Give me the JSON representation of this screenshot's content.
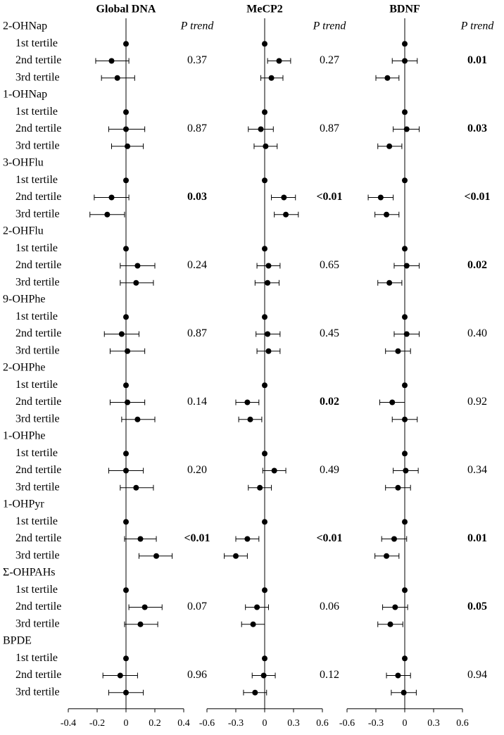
{
  "chart_data": {
    "type": "forest",
    "groups": [
      "2-OHNap",
      "1-OHNap",
      "3-OHFlu",
      "2-OHFlu",
      "9-OHPhe",
      "2-OHPhe",
      "1-OHPhe",
      "1-OHPyr",
      "Σ-OHPAHs",
      "BPDE"
    ],
    "tertiles": [
      "1st tertile",
      "2nd tertile",
      "3rd tertile"
    ],
    "p_trend_label": "P trend",
    "color": "#000000",
    "panels": [
      {
        "title": "Global DNA",
        "xlim": [
          -0.4,
          0.4
        ],
        "xticks": [
          -0.4,
          -0.2,
          0,
          0.2,
          0.4
        ],
        "estimates": [
          [
            0,
            -0.1,
            -0.06
          ],
          [
            0,
            0.0,
            0.01
          ],
          [
            0,
            -0.1,
            -0.13
          ],
          [
            0,
            0.08,
            0.07
          ],
          [
            0,
            -0.03,
            0.01
          ],
          [
            0,
            0.01,
            0.08
          ],
          [
            0,
            0.0,
            0.07
          ],
          [
            0,
            0.1,
            0.21
          ],
          [
            0,
            0.13,
            0.1
          ],
          [
            0,
            -0.04,
            0.0
          ]
        ],
        "lower": [
          [
            null,
            -0.21,
            -0.17
          ],
          [
            null,
            -0.12,
            -0.1
          ],
          [
            null,
            -0.22,
            -0.25
          ],
          [
            null,
            -0.04,
            -0.04
          ],
          [
            null,
            -0.15,
            -0.11
          ],
          [
            null,
            -0.11,
            -0.03
          ],
          [
            null,
            -0.12,
            -0.04
          ],
          [
            null,
            -0.01,
            0.09
          ],
          [
            null,
            0.02,
            -0.01
          ],
          [
            null,
            -0.16,
            -0.12
          ]
        ],
        "upper": [
          [
            null,
            0.02,
            0.06
          ],
          [
            null,
            0.13,
            0.12
          ],
          [
            null,
            0.02,
            -0.01
          ],
          [
            null,
            0.2,
            0.19
          ],
          [
            null,
            0.09,
            0.13
          ],
          [
            null,
            0.13,
            0.2
          ],
          [
            null,
            0.12,
            0.19
          ],
          [
            null,
            0.21,
            0.32
          ],
          [
            null,
            0.25,
            0.22
          ],
          [
            null,
            0.08,
            0.12
          ]
        ],
        "p_trend": [
          "0.37",
          "0.87",
          "0.03",
          "0.24",
          "0.87",
          "0.14",
          "0.20",
          "<0.01",
          "0.07",
          "0.96"
        ],
        "p_bold": [
          false,
          false,
          true,
          false,
          false,
          false,
          false,
          true,
          false,
          false
        ]
      },
      {
        "title": "MeCP2",
        "xlim": [
          -0.6,
          0.6
        ],
        "xticks": [
          -0.6,
          -0.3,
          0,
          0.3,
          0.6
        ],
        "estimates": [
          [
            0,
            0.15,
            0.07
          ],
          [
            0,
            -0.04,
            0.01
          ],
          [
            0,
            0.2,
            0.22
          ],
          [
            0,
            0.04,
            0.03
          ],
          [
            0,
            0.03,
            0.04
          ],
          [
            0,
            -0.18,
            -0.15
          ],
          [
            0,
            0.1,
            -0.05
          ],
          [
            0,
            -0.18,
            -0.3
          ],
          [
            0,
            -0.08,
            -0.12
          ],
          [
            0,
            -0.01,
            -0.1
          ]
        ],
        "lower": [
          [
            null,
            0.03,
            -0.04
          ],
          [
            null,
            -0.17,
            -0.11
          ],
          [
            null,
            0.07,
            0.1
          ],
          [
            null,
            -0.08,
            -0.1
          ],
          [
            null,
            -0.09,
            -0.08
          ],
          [
            null,
            -0.3,
            -0.27
          ],
          [
            null,
            -0.02,
            -0.17
          ],
          [
            null,
            -0.3,
            -0.42
          ],
          [
            null,
            -0.2,
            -0.24
          ],
          [
            null,
            -0.13,
            -0.22
          ]
        ],
        "upper": [
          [
            null,
            0.27,
            0.19
          ],
          [
            null,
            0.09,
            0.13
          ],
          [
            null,
            0.32,
            0.35
          ],
          [
            null,
            0.16,
            0.15
          ],
          [
            null,
            0.16,
            0.16
          ],
          [
            null,
            -0.06,
            -0.03
          ],
          [
            null,
            0.22,
            0.07
          ],
          [
            null,
            -0.06,
            -0.18
          ],
          [
            null,
            0.04,
            0.0
          ],
          [
            null,
            0.11,
            0.02
          ]
        ],
        "p_trend": [
          "0.27",
          "0.87",
          "<0.01",
          "0.65",
          "0.45",
          "0.02",
          "0.49",
          "<0.01",
          "0.06",
          "0.12"
        ],
        "p_bold": [
          false,
          false,
          true,
          false,
          false,
          true,
          false,
          true,
          false,
          false
        ]
      },
      {
        "title": "BDNF",
        "xlim": [
          -0.6,
          0.6
        ],
        "xticks": [
          -0.6,
          -0.3,
          0,
          0.3,
          0.6
        ],
        "estimates": [
          [
            0,
            0.0,
            -0.18
          ],
          [
            0,
            0.02,
            -0.16
          ],
          [
            0,
            -0.25,
            -0.19
          ],
          [
            0,
            0.02,
            -0.16
          ],
          [
            0,
            0.02,
            -0.07
          ],
          [
            0,
            -0.13,
            0.0
          ],
          [
            0,
            0.01,
            -0.07
          ],
          [
            0,
            -0.11,
            -0.19
          ],
          [
            0,
            -0.1,
            -0.15
          ],
          [
            0,
            -0.07,
            -0.01
          ]
        ],
        "lower": [
          [
            null,
            -0.13,
            -0.3
          ],
          [
            null,
            -0.12,
            -0.28
          ],
          [
            null,
            -0.38,
            -0.31
          ],
          [
            null,
            -0.11,
            -0.28
          ],
          [
            null,
            -0.11,
            -0.2
          ],
          [
            null,
            -0.26,
            -0.13
          ],
          [
            null,
            -0.12,
            -0.2
          ],
          [
            null,
            -0.24,
            -0.31
          ],
          [
            null,
            -0.23,
            -0.28
          ],
          [
            null,
            -0.19,
            -0.14
          ]
        ],
        "upper": [
          [
            null,
            0.13,
            -0.06
          ],
          [
            null,
            0.15,
            -0.03
          ],
          [
            null,
            -0.12,
            -0.06
          ],
          [
            null,
            0.15,
            -0.03
          ],
          [
            null,
            0.15,
            0.06
          ],
          [
            null,
            0.0,
            0.13
          ],
          [
            null,
            0.14,
            0.06
          ],
          [
            null,
            0.02,
            -0.06
          ],
          [
            null,
            0.03,
            -0.02
          ],
          [
            null,
            0.06,
            0.12
          ]
        ],
        "p_trend": [
          "0.01",
          "0.03",
          "<0.01",
          "0.02",
          "0.40",
          "0.92",
          "0.34",
          "0.01",
          "0.05",
          "0.94"
        ],
        "p_bold": [
          true,
          true,
          true,
          true,
          false,
          false,
          false,
          true,
          true,
          false
        ]
      }
    ]
  }
}
